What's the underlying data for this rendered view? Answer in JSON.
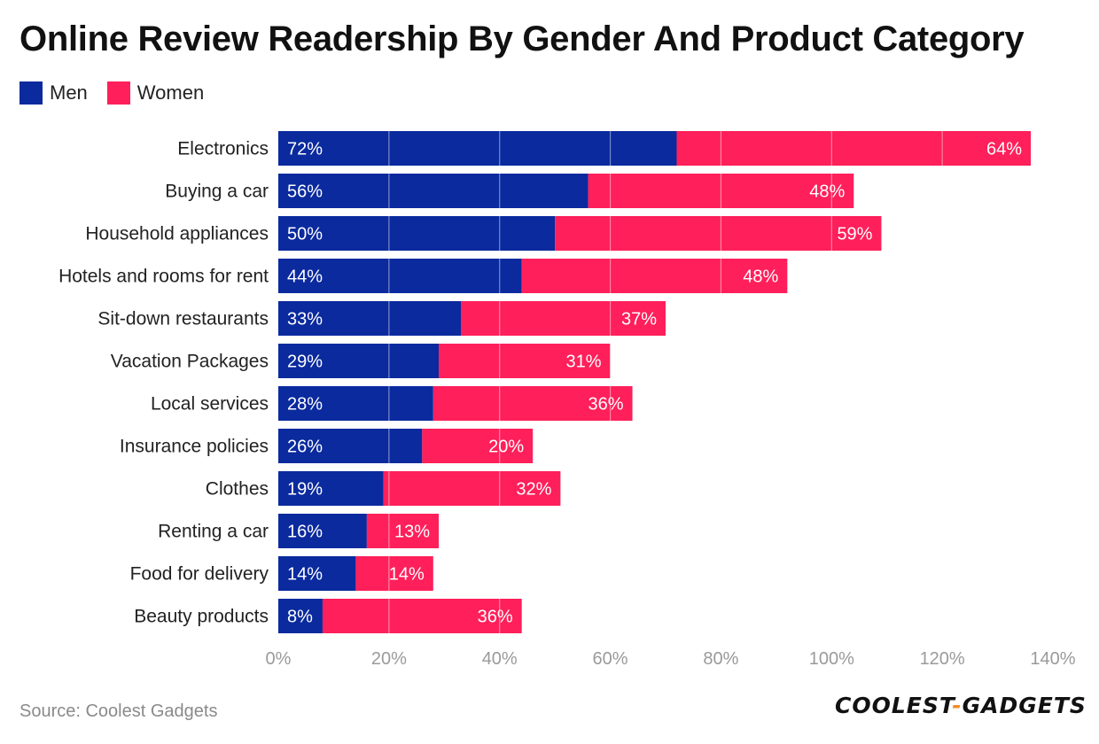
{
  "chart_data": {
    "type": "bar",
    "stacked": true,
    "orientation": "horizontal",
    "title": "Online Review Readership By Gender And Product Category",
    "categories": [
      "Electronics",
      "Buying a car",
      "Household appliances",
      "Hotels and rooms for rent",
      "Sit-down restaurants",
      "Vacation Packages",
      "Local services",
      "Insurance policies",
      "Clothes",
      "Renting a car",
      "Food for delivery",
      "Beauty products"
    ],
    "series": [
      {
        "name": "Men",
        "color": "#0a2a9e",
        "values": [
          72,
          56,
          50,
          44,
          33,
          29,
          28,
          26,
          19,
          16,
          14,
          8
        ]
      },
      {
        "name": "Women",
        "color": "#ff1f5a",
        "values": [
          64,
          48,
          59,
          48,
          37,
          31,
          36,
          20,
          32,
          13,
          14,
          36
        ]
      }
    ],
    "xlim": [
      0,
      140
    ],
    "xticks": [
      0,
      20,
      40,
      60,
      80,
      100,
      120,
      140
    ],
    "tick_suffix": "%",
    "xlabel": "",
    "ylabel": "",
    "legend_position": "top-left",
    "grid": true
  },
  "footer": {
    "source": "Source: Coolest Gadgets",
    "brand_left": "COOLEST",
    "brand_dash": "-",
    "brand_right": "GADGETS"
  }
}
